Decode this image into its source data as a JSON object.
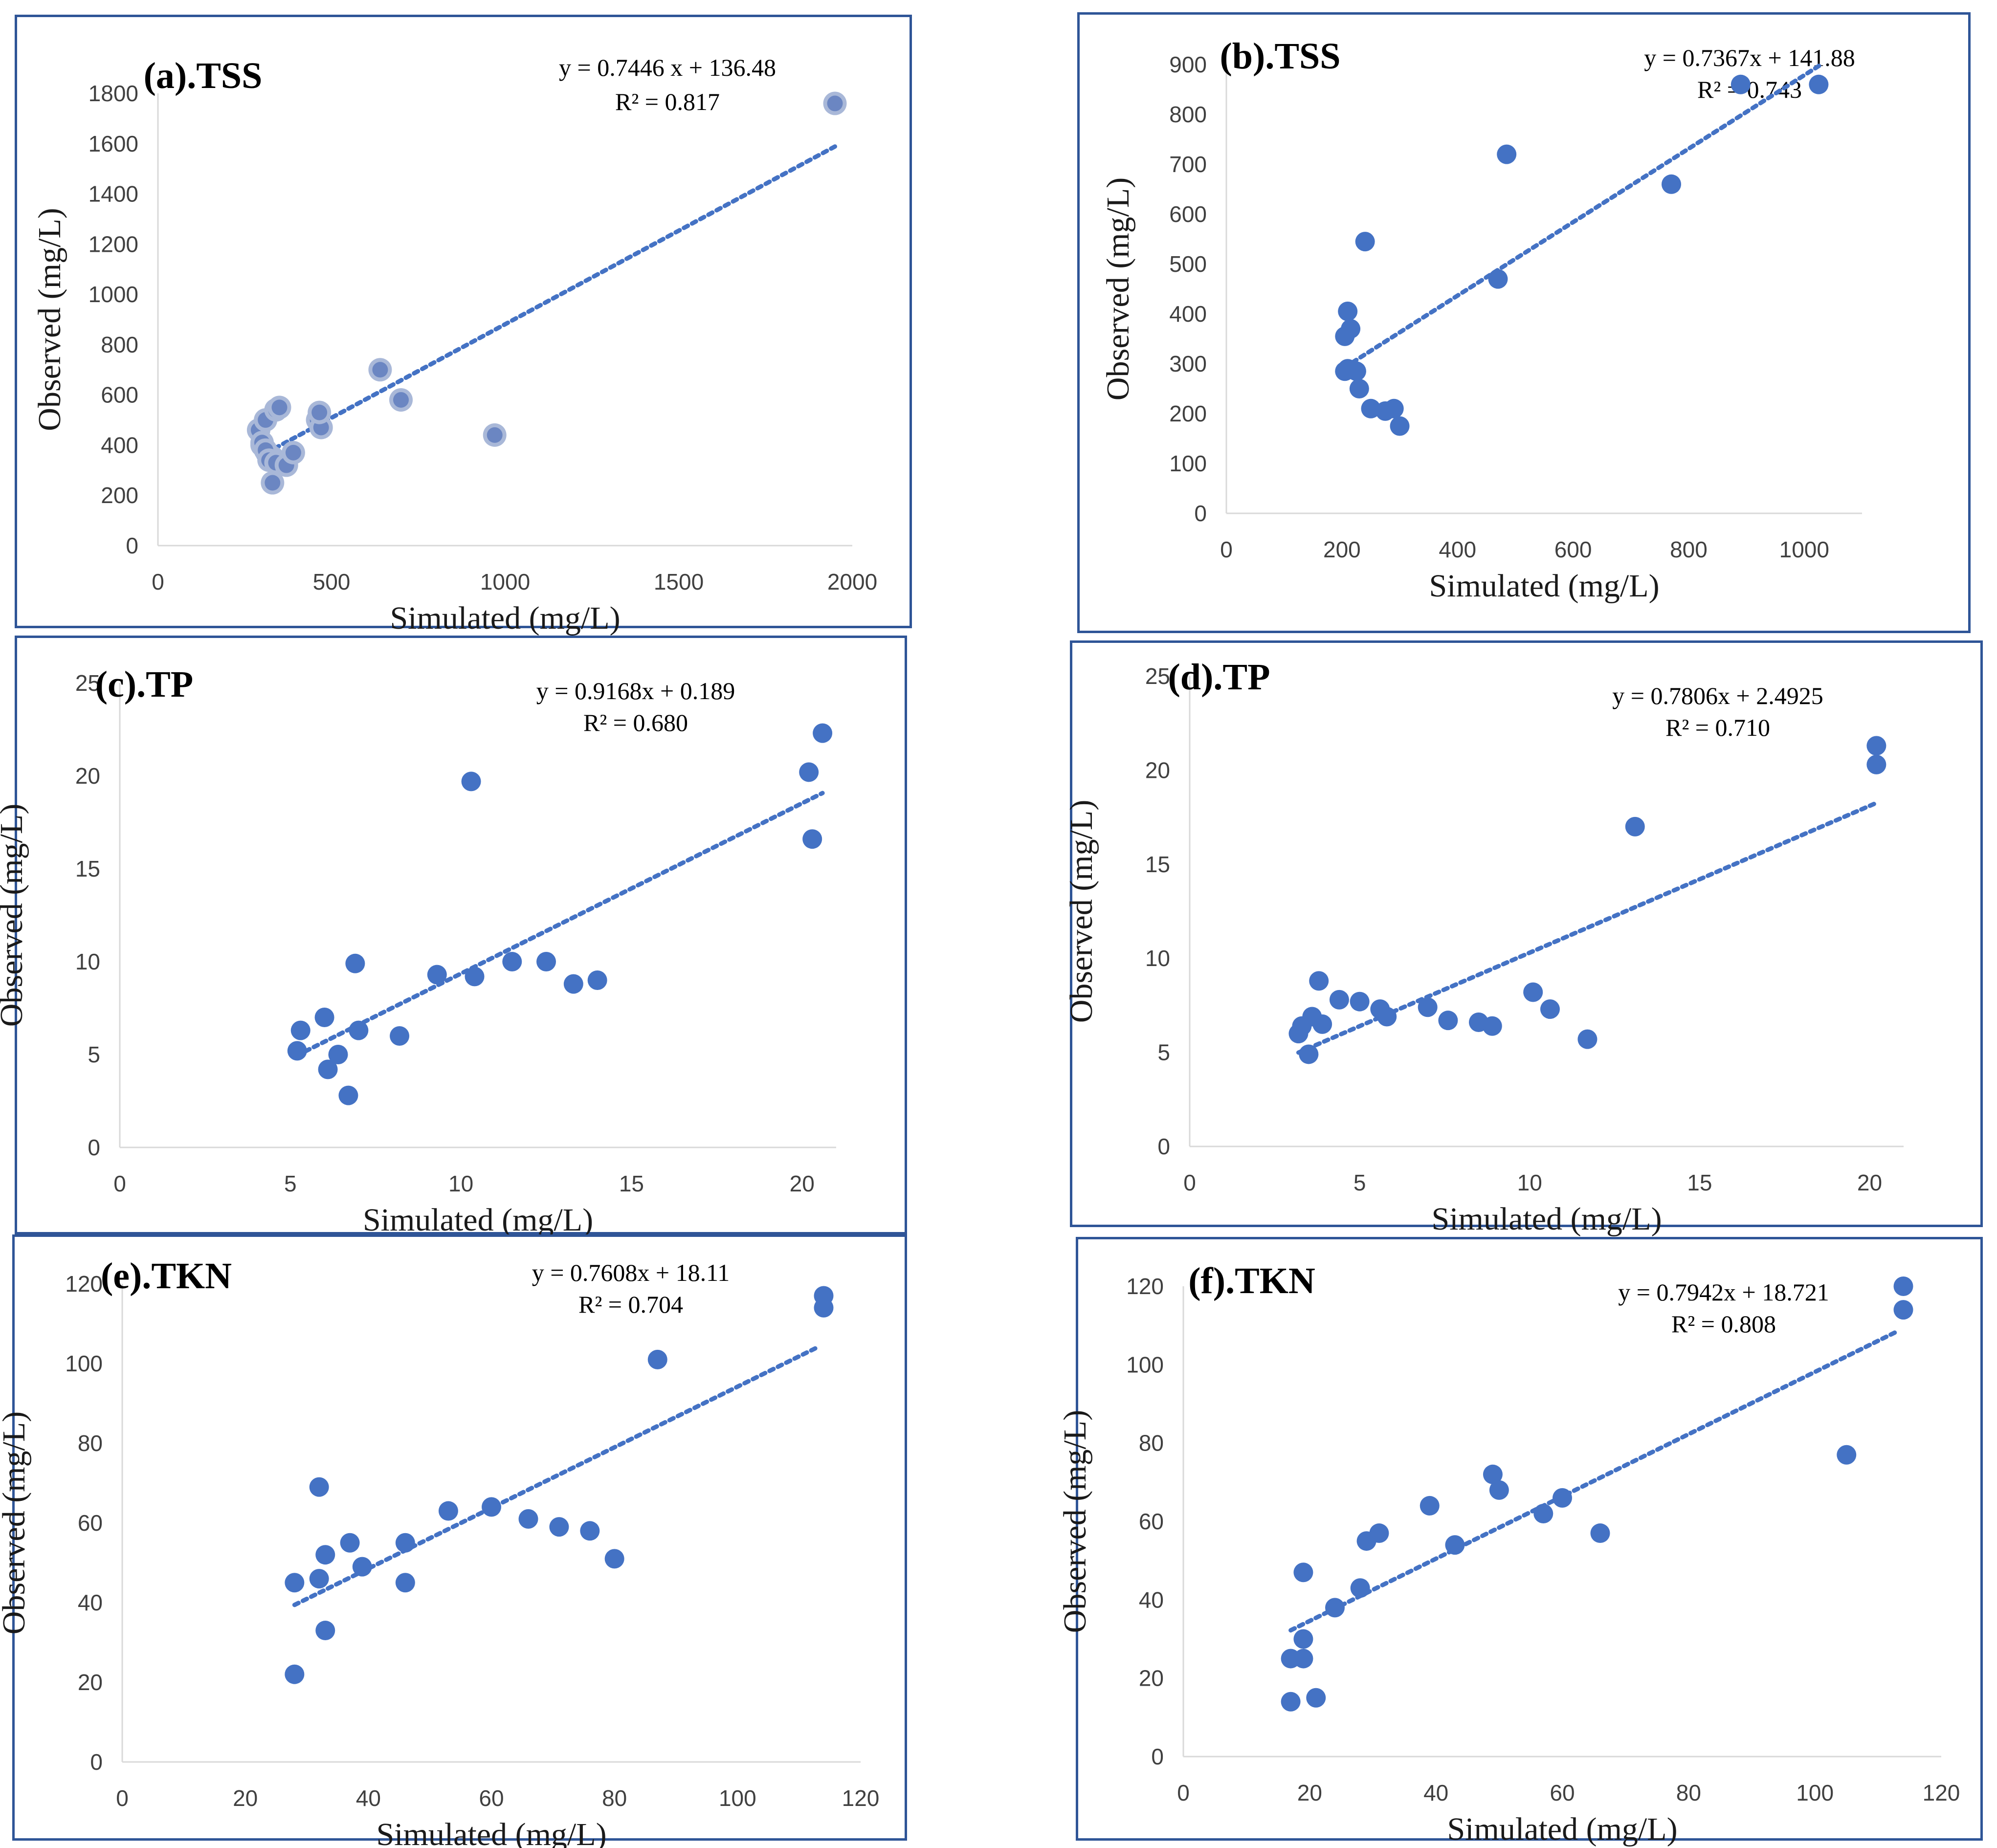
{
  "colors": {
    "marker": "#4472c4",
    "marker_halo": "#a9b8d8",
    "trendline": "#4472c4",
    "border": "#2f5597"
  },
  "chart_data": [
    {
      "id": "a",
      "type": "scatter",
      "title": "(a).TSS",
      "xlabel": "Simulated (mg/L)",
      "ylabel": "Observed (mg/L)",
      "xlim": [
        0,
        2000
      ],
      "ylim": [
        0,
        1800
      ],
      "xticks": [
        0,
        500,
        1000,
        1500,
        2000
      ],
      "yticks": [
        0,
        200,
        400,
        600,
        800,
        1000,
        1200,
        1400,
        1600,
        1800
      ],
      "equation": "y = 0.7446 x + 136.48",
      "r2": "R² = 0.817",
      "trend": {
        "slope": 0.7446,
        "intercept": 136.48,
        "x_from": 290,
        "x_to": 1950
      },
      "halo": true,
      "x": [
        1950,
        290,
        300,
        310,
        320,
        300,
        330,
        340,
        310,
        320,
        340,
        350,
        370,
        390,
        330,
        460,
        470,
        465,
        640,
        700,
        970
      ],
      "y": [
        1760,
        460,
        400,
        500,
        360,
        410,
        350,
        540,
        380,
        340,
        330,
        550,
        320,
        370,
        250,
        500,
        470,
        530,
        700,
        580,
        440
      ]
    },
    {
      "id": "b",
      "type": "scatter",
      "title": "(b).TSS",
      "xlabel": "Simulated (mg/L)",
      "ylabel": "Observed (mg/L)",
      "xlim": [
        0,
        1100
      ],
      "ylim": [
        0,
        900
      ],
      "xticks": [
        0,
        200,
        400,
        600,
        800,
        1000
      ],
      "yticks": [
        0,
        100,
        200,
        300,
        400,
        500,
        600,
        700,
        800,
        900
      ],
      "equation": "y = 0.7367x + 141.88",
      "r2": "R² = 0.743",
      "trend": {
        "slope": 0.7367,
        "intercept": 141.88,
        "x_from": 205,
        "x_to": 1030
      },
      "halo": false,
      "x": [
        890,
        1025,
        485,
        770,
        470,
        240,
        210,
        215,
        205,
        205,
        210,
        225,
        230,
        250,
        275,
        290,
        300
      ],
      "y": [
        860,
        860,
        720,
        660,
        470,
        545,
        405,
        370,
        355,
        285,
        290,
        285,
        250,
        210,
        205,
        210,
        175
      ]
    },
    {
      "id": "c",
      "type": "scatter",
      "title": "(c).TP",
      "xlabel": "Simulated (mg/L)",
      "ylabel": "Observed (mg/L)",
      "xlim": [
        0,
        21
      ],
      "ylim": [
        0,
        25
      ],
      "xticks": [
        0,
        5,
        10,
        15,
        20
      ],
      "yticks": [
        0,
        5,
        10,
        15,
        20,
        25
      ],
      "equation": "y = 0.9168x + 0.189",
      "r2": "R² = 0.680",
      "trend": {
        "slope": 0.9168,
        "intercept": 0.189,
        "x_from": 5.2,
        "x_to": 20.6
      },
      "halo": false,
      "x": [
        20.6,
        20.2,
        20.3,
        10.3,
        5.3,
        5.2,
        6.0,
        6.4,
        6.1,
        6.7,
        6.9,
        7.0,
        8.2,
        9.3,
        10.4,
        11.5,
        12.5,
        13.3,
        14.0
      ],
      "y": [
        22.3,
        20.2,
        16.6,
        19.7,
        6.3,
        5.2,
        7.0,
        5.0,
        4.2,
        2.8,
        9.9,
        6.3,
        6.0,
        9.3,
        9.2,
        10.0,
        10.0,
        8.8,
        9.0
      ]
    },
    {
      "id": "d",
      "type": "scatter",
      "title": "(d).TP",
      "xlabel": "Simulated (mg/L)",
      "ylabel": "Observed (mg/L)",
      "xlim": [
        0,
        21
      ],
      "ylim": [
        0,
        25
      ],
      "xticks": [
        0,
        5,
        10,
        15,
        20
      ],
      "yticks": [
        0,
        5,
        10,
        15,
        20,
        25
      ],
      "equation": "y = 0.7806x + 2.4925",
      "r2": "R² = 0.710",
      "trend": {
        "slope": 0.7806,
        "intercept": 2.4925,
        "x_from": 3.2,
        "x_to": 20.2
      },
      "halo": false,
      "x": [
        20.2,
        20.2,
        13.1,
        3.2,
        3.3,
        3.5,
        3.6,
        3.8,
        3.9,
        4.4,
        5.0,
        5.6,
        5.8,
        7.0,
        7.6,
        8.5,
        8.9,
        10.1,
        10.6,
        11.7
      ],
      "y": [
        21.3,
        20.3,
        17.0,
        6.0,
        6.4,
        4.9,
        6.9,
        8.8,
        6.5,
        7.8,
        7.7,
        7.3,
        6.9,
        7.4,
        6.7,
        6.6,
        6.4,
        8.2,
        7.3,
        5.7
      ]
    },
    {
      "id": "e",
      "type": "scatter",
      "title": "(e).TKN",
      "xlabel": "Simulated (mg/L)",
      "ylabel": "Observed (mg/L)",
      "xlim": [
        0,
        120
      ],
      "ylim": [
        0,
        120
      ],
      "xticks": [
        0,
        20,
        40,
        60,
        80,
        100,
        120
      ],
      "yticks": [
        0,
        20,
        40,
        60,
        80,
        100,
        120
      ],
      "equation": "y = 0.7608x + 18.11",
      "r2": "R² = 0.704",
      "trend": {
        "slope": 0.7608,
        "intercept": 18.11,
        "x_from": 28,
        "x_to": 113
      },
      "halo": false,
      "x": [
        114,
        114,
        87,
        28,
        28,
        32,
        33,
        33,
        32,
        37,
        39,
        46,
        46,
        53,
        60,
        66,
        71,
        76,
        80
      ],
      "y": [
        117,
        114,
        101,
        45,
        22,
        46,
        52,
        33,
        69,
        55,
        49,
        55,
        45,
        63,
        64,
        61,
        59,
        58,
        51
      ]
    },
    {
      "id": "f",
      "type": "scatter",
      "title": "(f).TKN",
      "xlabel": "Simulated (mg/L)",
      "ylabel": "Observed (mg/L)",
      "xlim": [
        0,
        120
      ],
      "ylim": [
        0,
        120
      ],
      "xticks": [
        0,
        20,
        40,
        60,
        80,
        100,
        120
      ],
      "yticks": [
        0,
        20,
        40,
        60,
        80,
        100,
        120
      ],
      "equation": "y = 0.7942x + 18.721",
      "r2": "R² = 0.808",
      "trend": {
        "slope": 0.7942,
        "intercept": 18.721,
        "x_from": 17,
        "x_to": 113
      },
      "halo": false,
      "x": [
        114,
        114,
        105,
        17,
        17,
        19,
        19,
        19,
        21,
        24,
        28,
        29,
        31,
        39,
        43,
        49,
        50,
        57,
        60,
        66
      ],
      "y": [
        120,
        114,
        77,
        14,
        25,
        25,
        30,
        47,
        15,
        38,
        43,
        55,
        57,
        64,
        54,
        72,
        68,
        62,
        66,
        57
      ]
    }
  ]
}
